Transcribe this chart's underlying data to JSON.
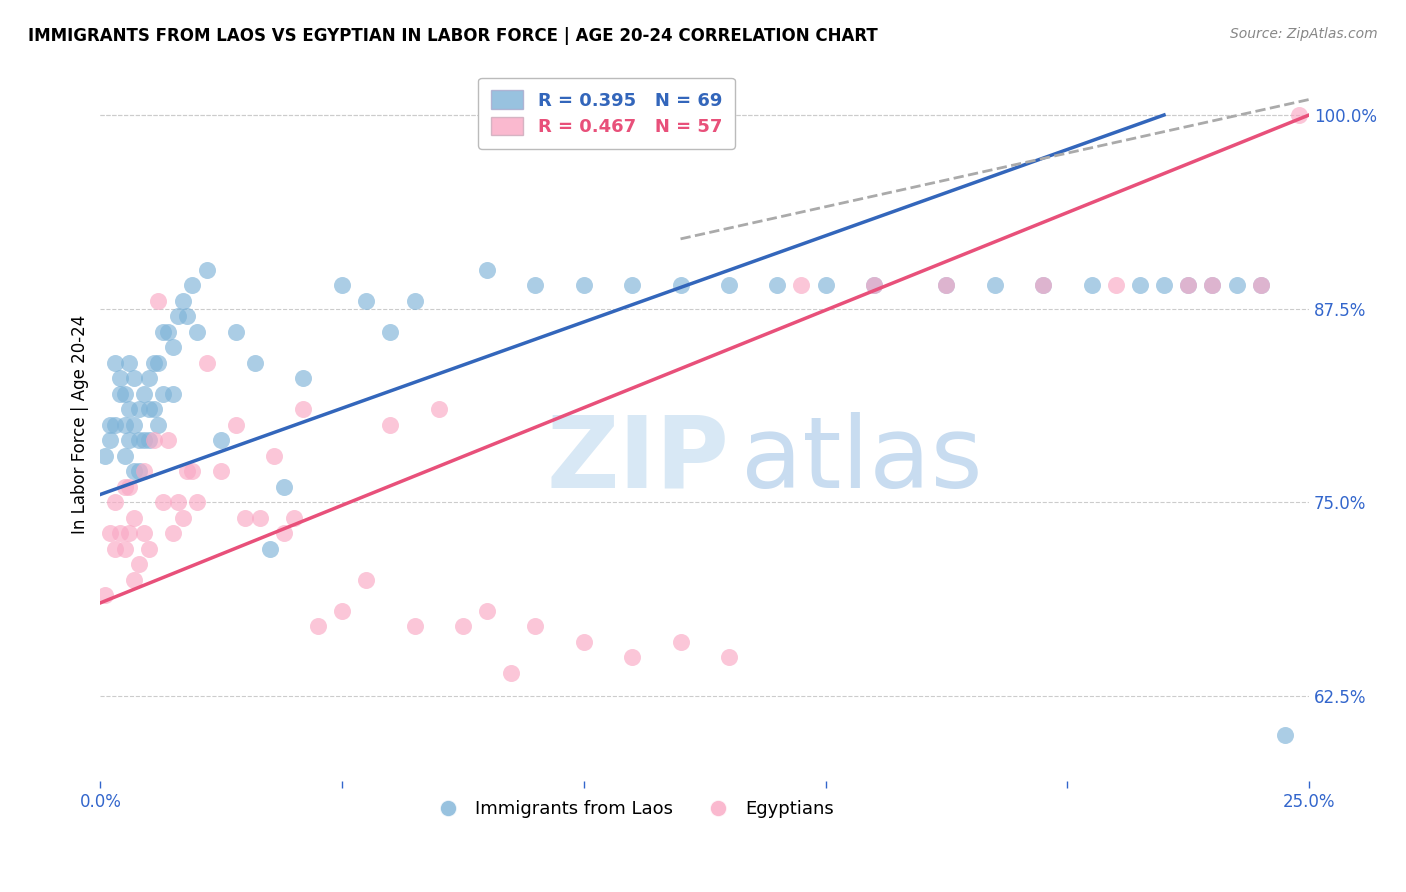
{
  "title": "IMMIGRANTS FROM LAOS VS EGYPTIAN IN LABOR FORCE | AGE 20-24 CORRELATION CHART",
  "source": "Source: ZipAtlas.com",
  "ylabel": "In Labor Force | Age 20-24",
  "blue_label": "Immigrants from Laos",
  "pink_label": "Egyptians",
  "blue_R": 0.395,
  "blue_N": 69,
  "pink_R": 0.467,
  "pink_N": 57,
  "xlim": [
    0.0,
    0.25
  ],
  "ylim": [
    0.57,
    1.03
  ],
  "xticks": [
    0.0,
    0.05,
    0.1,
    0.15,
    0.2,
    0.25
  ],
  "yticks": [
    0.625,
    0.75,
    0.875,
    1.0
  ],
  "xtick_labels": [
    "0.0%",
    "",
    "",
    "",
    "",
    "25.0%"
  ],
  "ytick_labels": [
    "62.5%",
    "75.0%",
    "87.5%",
    "100.0%"
  ],
  "blue_color": "#7EB3D8",
  "pink_color": "#F9A8C4",
  "blue_line_color": "#3366BB",
  "pink_line_color": "#E8507A",
  "blue_line_x0": 0.0,
  "blue_line_y0": 0.755,
  "blue_line_x1": 0.22,
  "blue_line_y1": 1.0,
  "pink_line_x0": 0.0,
  "pink_line_y0": 0.685,
  "pink_line_x1": 0.25,
  "pink_line_y1": 1.0,
  "dash_line_x0": 0.12,
  "dash_line_y0": 0.92,
  "dash_line_x1": 0.25,
  "dash_line_y1": 1.01,
  "blue_x": [
    0.001,
    0.002,
    0.002,
    0.003,
    0.003,
    0.004,
    0.004,
    0.005,
    0.005,
    0.005,
    0.006,
    0.006,
    0.006,
    0.007,
    0.007,
    0.007,
    0.008,
    0.008,
    0.008,
    0.009,
    0.009,
    0.01,
    0.01,
    0.01,
    0.011,
    0.011,
    0.012,
    0.012,
    0.013,
    0.013,
    0.014,
    0.015,
    0.015,
    0.016,
    0.017,
    0.018,
    0.019,
    0.02,
    0.022,
    0.025,
    0.028,
    0.032,
    0.035,
    0.038,
    0.042,
    0.05,
    0.055,
    0.06,
    0.065,
    0.08,
    0.09,
    0.1,
    0.11,
    0.12,
    0.13,
    0.14,
    0.15,
    0.16,
    0.175,
    0.185,
    0.195,
    0.205,
    0.215,
    0.22,
    0.225,
    0.23,
    0.235,
    0.24,
    0.245
  ],
  "blue_y": [
    0.78,
    0.79,
    0.8,
    0.8,
    0.84,
    0.82,
    0.83,
    0.8,
    0.78,
    0.82,
    0.79,
    0.81,
    0.84,
    0.77,
    0.8,
    0.83,
    0.79,
    0.81,
    0.77,
    0.82,
    0.79,
    0.81,
    0.83,
    0.79,
    0.81,
    0.84,
    0.8,
    0.84,
    0.82,
    0.86,
    0.86,
    0.82,
    0.85,
    0.87,
    0.88,
    0.87,
    0.89,
    0.86,
    0.9,
    0.79,
    0.86,
    0.84,
    0.72,
    0.76,
    0.83,
    0.89,
    0.88,
    0.86,
    0.88,
    0.9,
    0.89,
    0.89,
    0.89,
    0.89,
    0.89,
    0.89,
    0.89,
    0.89,
    0.89,
    0.89,
    0.89,
    0.89,
    0.89,
    0.89,
    0.89,
    0.89,
    0.89,
    0.89,
    0.6
  ],
  "pink_x": [
    0.001,
    0.002,
    0.003,
    0.003,
    0.004,
    0.005,
    0.005,
    0.006,
    0.006,
    0.007,
    0.007,
    0.008,
    0.009,
    0.009,
    0.01,
    0.011,
    0.012,
    0.013,
    0.014,
    0.015,
    0.016,
    0.017,
    0.018,
    0.019,
    0.02,
    0.022,
    0.025,
    0.028,
    0.03,
    0.033,
    0.036,
    0.038,
    0.04,
    0.042,
    0.045,
    0.05,
    0.055,
    0.06,
    0.065,
    0.07,
    0.075,
    0.08,
    0.085,
    0.09,
    0.1,
    0.11,
    0.12,
    0.13,
    0.145,
    0.16,
    0.175,
    0.195,
    0.21,
    0.225,
    0.23,
    0.24,
    0.248
  ],
  "pink_y": [
    0.69,
    0.73,
    0.72,
    0.75,
    0.73,
    0.72,
    0.76,
    0.73,
    0.76,
    0.7,
    0.74,
    0.71,
    0.73,
    0.77,
    0.72,
    0.79,
    0.88,
    0.75,
    0.79,
    0.73,
    0.75,
    0.74,
    0.77,
    0.77,
    0.75,
    0.84,
    0.77,
    0.8,
    0.74,
    0.74,
    0.78,
    0.73,
    0.74,
    0.81,
    0.67,
    0.68,
    0.7,
    0.8,
    0.67,
    0.81,
    0.67,
    0.68,
    0.64,
    0.67,
    0.66,
    0.65,
    0.66,
    0.65,
    0.89,
    0.89,
    0.89,
    0.89,
    0.89,
    0.89,
    0.89,
    0.89,
    1.0
  ]
}
